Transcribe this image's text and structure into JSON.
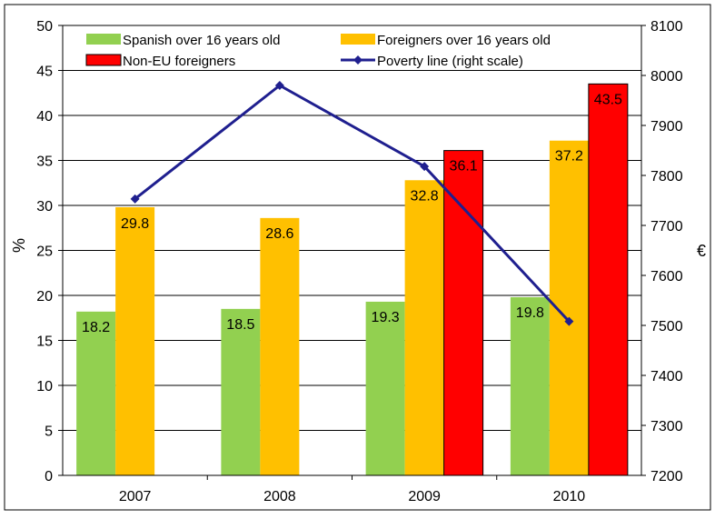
{
  "chart_data": {
    "type": "bar",
    "categories": [
      "2007",
      "2008",
      "2009",
      "2010"
    ],
    "series": [
      {
        "name": "Spanish over 16 years old",
        "values": [
          18.2,
          18.5,
          19.3,
          19.8
        ],
        "color": "#92D050",
        "axis": "left"
      },
      {
        "name": "Foreigners over 16 years old",
        "values": [
          29.8,
          28.6,
          32.8,
          37.2
        ],
        "color": "#FFC000",
        "axis": "left"
      },
      {
        "name": "Non-EU foreigners",
        "values": [
          null,
          null,
          36.1,
          43.5
        ],
        "color": "#FF0000",
        "axis": "left"
      }
    ],
    "line_series": {
      "name": "Poverty line (right scale)",
      "values": [
        7753,
        7980,
        7818,
        7508
      ],
      "color": "#1F1F8F",
      "axis": "right"
    },
    "ylabel": "%",
    "ylabel_right": "€",
    "ylim": [
      0,
      50
    ],
    "ylim_right": [
      7200,
      8100
    ],
    "yticks": [
      "0",
      "5",
      "10",
      "15",
      "20",
      "25",
      "30",
      "35",
      "40",
      "45",
      "50"
    ],
    "yticks_right": [
      "7200",
      "7300",
      "7400",
      "7500",
      "7600",
      "7700",
      "7800",
      "7900",
      "8000",
      "8100"
    ],
    "grid": true,
    "legend_position": "top"
  }
}
